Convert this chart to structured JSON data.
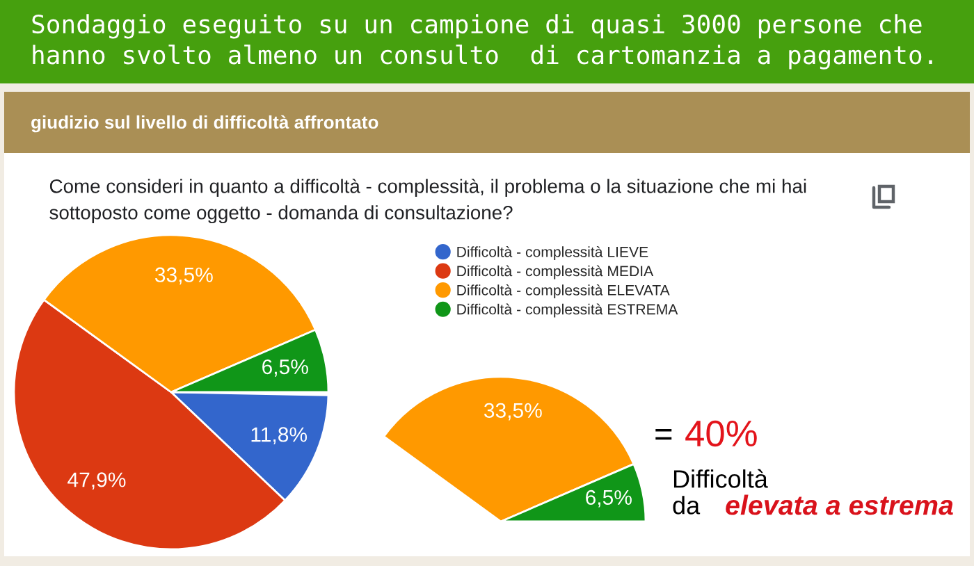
{
  "chart_data": [
    {
      "type": "pie",
      "title": "Sondaggio eseguito su un campione di quasi 3000 persone che hanno svolto almeno un consulto  di cartomanzia a pagamento.",
      "subtitle": "giudizio sul livello di difficoltà affrontato",
      "annotations": [
        "Come consideri in quanto a difficoltà - complessità, il problema o la situazione che mi hai sottoposto come oggetto - domanda di consultazione?"
      ],
      "categories": [
        "Difficoltà - complessità LIEVE",
        "Difficoltà - complessità MEDIA",
        "Difficoltà - complessità ELEVATA",
        "Difficoltà - complessità ESTREMA"
      ],
      "values": [
        11.8,
        47.9,
        33.5,
        6.5
      ],
      "colors": [
        "#3366cc",
        "#dc3912",
        "#ff9900",
        "#109618"
      ],
      "value_labels": [
        "11,8%",
        "47,9%",
        "33,5%",
        "6,5%"
      ],
      "legend": "top right"
    },
    {
      "type": "pie",
      "categories": [
        null,
        null
      ],
      "values": [
        33.5,
        6.5
      ],
      "colors": [
        "#ff9900",
        "#109618"
      ],
      "value_labels": [
        "33,5%",
        "6,5%"
      ],
      "annotations": [
        "=",
        "40%",
        "Difficoltà",
        "da",
        "elevata a estrema"
      ]
    }
  ]
}
